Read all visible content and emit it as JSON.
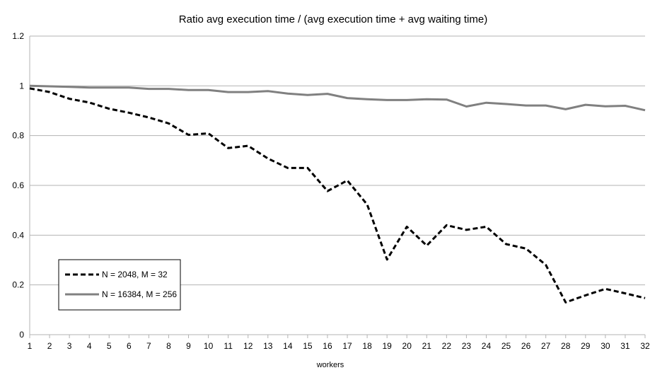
{
  "chart_data": {
    "type": "line",
    "title": "Ratio avg execution time / (avg execution time + avg waiting time)",
    "xlabel": "workers",
    "ylabel": "",
    "ylim": [
      0,
      1.2
    ],
    "yticks": [
      "0",
      "0.2",
      "0.4",
      "0.6",
      "0.8",
      "1",
      "1.2"
    ],
    "ytick_values": [
      0,
      0.2,
      0.4,
      0.6,
      0.8,
      1.0,
      1.2
    ],
    "categories": [
      "1",
      "2",
      "3",
      "4",
      "5",
      "6",
      "7",
      "8",
      "9",
      "10",
      "11",
      "12",
      "13",
      "14",
      "15",
      "16",
      "17",
      "18",
      "19",
      "20",
      "21",
      "22",
      "23",
      "24",
      "25",
      "26",
      "27",
      "28",
      "29",
      "30",
      "31",
      "32"
    ],
    "grid": "horizontal",
    "legend_position": "bottom-left",
    "series": [
      {
        "name": "N = 2048, M = 32",
        "style": "dashed",
        "color": "#000000",
        "values": [
          0.99,
          0.975,
          0.948,
          0.933,
          0.908,
          0.892,
          0.873,
          0.849,
          0.803,
          0.809,
          0.75,
          0.759,
          0.708,
          0.67,
          0.67,
          0.577,
          0.62,
          0.523,
          0.302,
          0.434,
          0.358,
          0.44,
          0.421,
          0.434,
          0.364,
          0.346,
          0.28,
          0.13,
          0.158,
          0.184,
          0.166,
          0.147
        ]
      },
      {
        "name": "N = 16384, M = 256",
        "style": "solid",
        "color": "#808080",
        "values": [
          1.0,
          0.998,
          0.996,
          0.993,
          0.993,
          0.993,
          0.988,
          0.988,
          0.983,
          0.983,
          0.975,
          0.975,
          0.979,
          0.969,
          0.963,
          0.968,
          0.951,
          0.946,
          0.943,
          0.943,
          0.946,
          0.945,
          0.917,
          0.932,
          0.927,
          0.921,
          0.921,
          0.906,
          0.924,
          0.918,
          0.92,
          0.902
        ]
      }
    ]
  }
}
